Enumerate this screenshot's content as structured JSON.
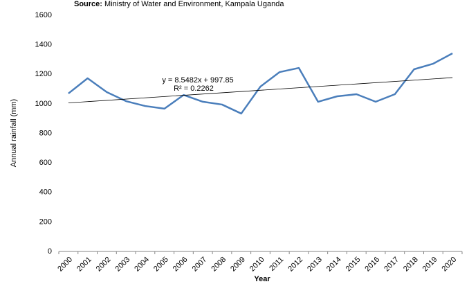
{
  "chart_data": {
    "type": "line",
    "source_label": "Source:",
    "title": "Ministry of Water and Environment, Kampala Uganda",
    "y_label": "Annual rainfall (mm)",
    "x_label": "Year",
    "categories": [
      "2000",
      "2001",
      "2002",
      "2003",
      "2004",
      "2005",
      "2006",
      "2007",
      "2008",
      "2009",
      "2010",
      "2011",
      "2012",
      "2013",
      "2014",
      "2015",
      "2016",
      "2017",
      "2018",
      "2019",
      "2020"
    ],
    "series": [
      {
        "name": "Annual rainfall",
        "color": "#4a7ebb",
        "values": [
          1070,
          1173,
          1079,
          1018,
          985,
          967,
          1060,
          1014,
          995,
          934,
          1117,
          1215,
          1243,
          1014,
          1051,
          1065,
          1014,
          1065,
          1234,
          1272,
          1342
        ]
      }
    ],
    "trendline": {
      "slope": 8.5482,
      "intercept": 997.85,
      "equation": "y = 8.5482x + 997.85",
      "r2": "R² = 0.2262",
      "color": "#000000"
    },
    "ylim": [
      0,
      1600
    ],
    "yticks": [
      0,
      200,
      400,
      600,
      800,
      1000,
      1200,
      1400,
      1600
    ],
    "grid": false
  }
}
